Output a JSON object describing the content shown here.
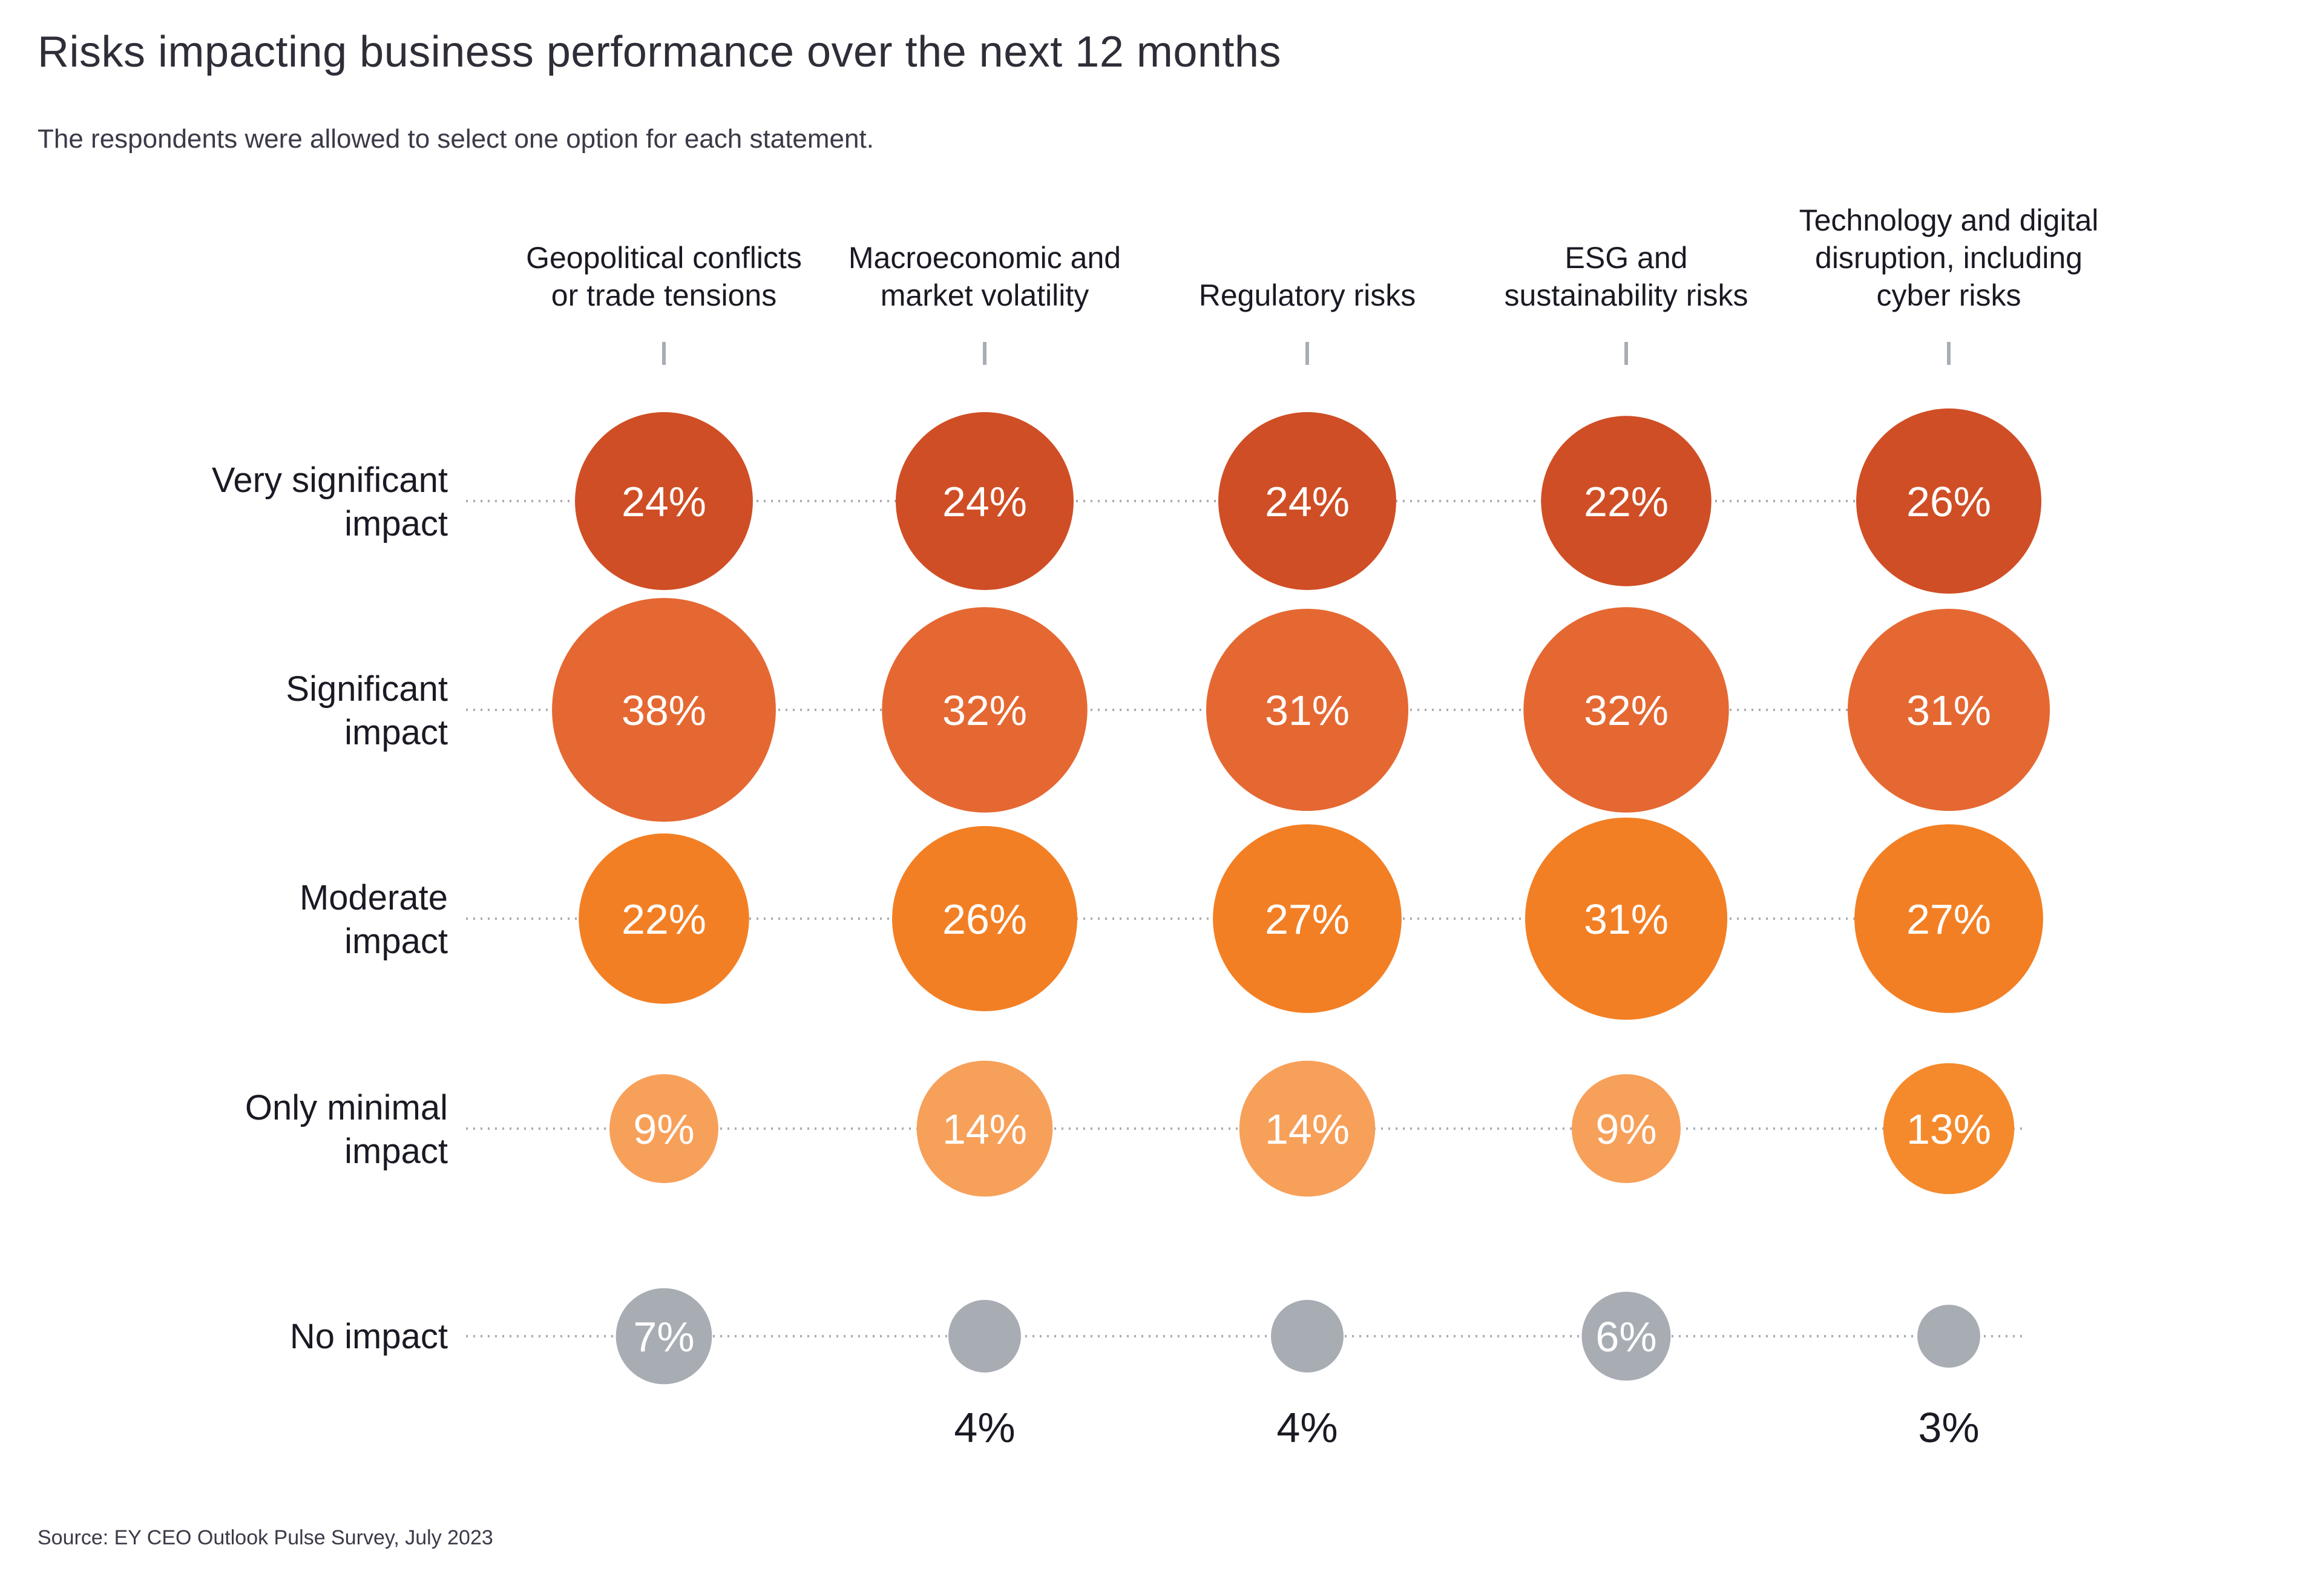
{
  "title": "Risks impacting business performance over the next 12 months",
  "subtitle": "The respondents were allowed to select one option for each statement.",
  "source": "Source: EY CEO Outlook Pulse Survey, July 2023",
  "chart_data": {
    "type": "bubble-matrix",
    "title": "Risks impacting business performance over the next 12 months",
    "subtitle": "The respondents were allowed to select one option for each statement.",
    "unit": "%",
    "columns": [
      [
        "Geopolitical conflicts",
        "or trade tensions"
      ],
      [
        "Macroeconomic and",
        "market volatility"
      ],
      [
        "Regulatory risks"
      ],
      [
        "ESG and",
        "sustainability risks"
      ],
      [
        "Technology and digital",
        "disruption, including",
        "cyber risks"
      ]
    ],
    "column_names": [
      "Geopolitical conflicts or trade tensions",
      "Macroeconomic and market volatility",
      "Regulatory risks",
      "ESG and sustainability risks",
      "Technology and digital disruption, including cyber risks"
    ],
    "rows": [
      {
        "label": [
          "Very significant",
          "impact"
        ],
        "name": "Very significant impact",
        "color": "#d04e25",
        "values": [
          24,
          24,
          24,
          22,
          26
        ]
      },
      {
        "label": [
          "Significant",
          "impact"
        ],
        "name": "Significant impact",
        "color": "#e56832",
        "values": [
          38,
          32,
          31,
          32,
          31
        ]
      },
      {
        "label": [
          "Moderate",
          "impact"
        ],
        "name": "Moderate impact",
        "color": "#f37f24",
        "values": [
          22,
          26,
          27,
          31,
          27
        ]
      },
      {
        "label": [
          "Only minimal",
          "impact"
        ],
        "name": "Only minimal impact",
        "color": "#f7a05a",
        "values": [
          9,
          14,
          14,
          9,
          13
        ],
        "colors": [
          "#f7a05a",
          "#f7a05a",
          "#f7a05a",
          "#f7a05a",
          "#f58a2c"
        ]
      },
      {
        "label": [
          "No impact"
        ],
        "name": "No impact",
        "color": "#a8adb4",
        "values": [
          7,
          4,
          4,
          6,
          3
        ],
        "label_outside": [
          false,
          true,
          true,
          false,
          true
        ]
      }
    ],
    "dotted_gridlines": true,
    "column_tick_color": "#a8adb4"
  }
}
